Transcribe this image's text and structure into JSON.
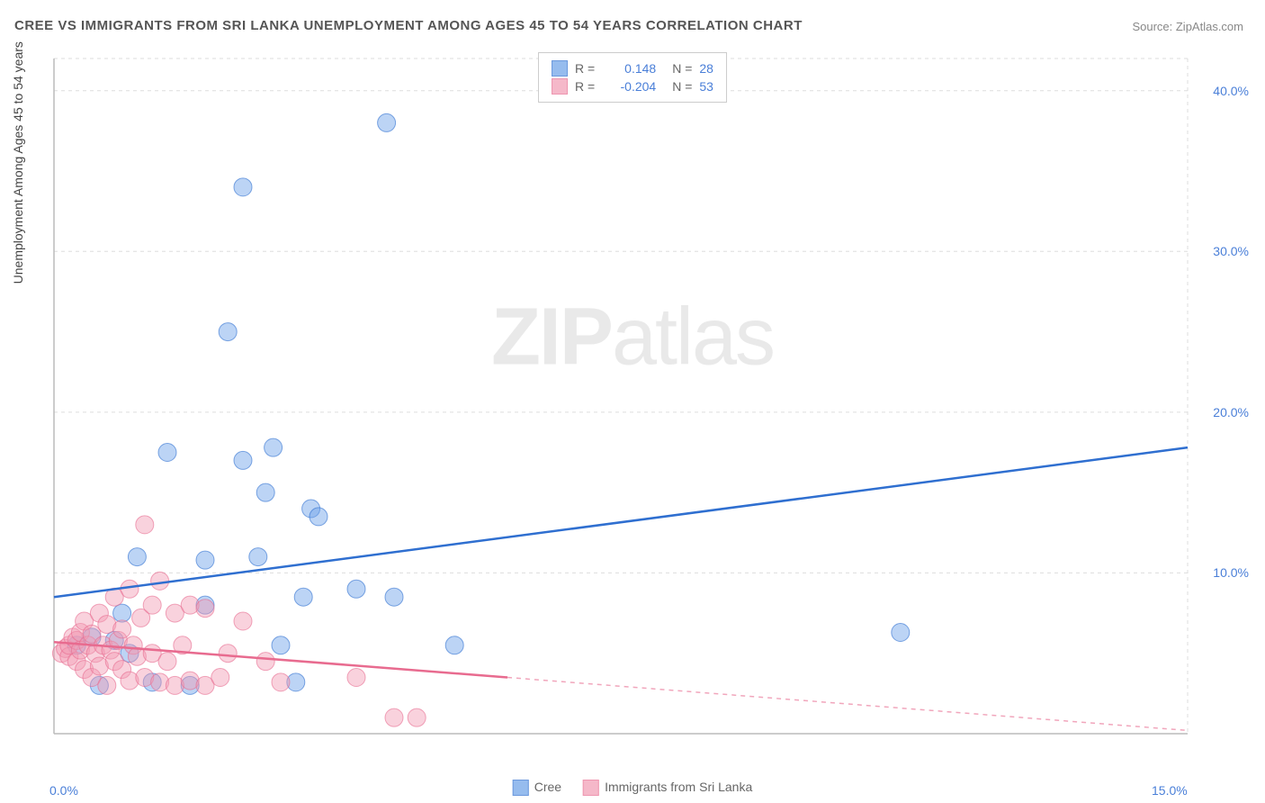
{
  "title": "CREE VS IMMIGRANTS FROM SRI LANKA UNEMPLOYMENT AMONG AGES 45 TO 54 YEARS CORRELATION CHART",
  "source_label": "Source: ",
  "source_name": "ZipAtlas.com",
  "y_axis_label": "Unemployment Among Ages 45 to 54 years",
  "watermark_bold": "ZIP",
  "watermark_light": "atlas",
  "chart": {
    "type": "scatter",
    "xlim": [
      0,
      15
    ],
    "ylim": [
      0,
      42
    ],
    "x_ticks": [
      {
        "v": 0,
        "label": "0.0%"
      },
      {
        "v": 15,
        "label": "15.0%"
      }
    ],
    "y_ticks": [
      {
        "v": 10,
        "label": "10.0%"
      },
      {
        "v": 20,
        "label": "20.0%"
      },
      {
        "v": 30,
        "label": "30.0%"
      },
      {
        "v": 40,
        "label": "40.0%"
      }
    ],
    "grid_color": "#dddddd",
    "axis_color": "#bbbbbb",
    "background": "#ffffff",
    "marker_radius": 10,
    "marker_opacity": 0.45,
    "line_width": 2.5,
    "series": [
      {
        "name": "Cree",
        "color": "#6aa0e8",
        "line_color": "#2f6fd0",
        "R": "0.148",
        "N": "28",
        "trend": {
          "x1": 0,
          "y1": 8.5,
          "x2": 15,
          "y2": 17.8,
          "dash_after_x": 15
        },
        "points": [
          [
            0.3,
            5.5
          ],
          [
            0.5,
            6.0
          ],
          [
            0.6,
            3.0
          ],
          [
            0.8,
            5.8
          ],
          [
            0.9,
            7.5
          ],
          [
            1.0,
            5.0
          ],
          [
            1.1,
            11.0
          ],
          [
            1.3,
            3.2
          ],
          [
            1.5,
            17.5
          ],
          [
            1.8,
            3.0
          ],
          [
            2.0,
            10.8
          ],
          [
            2.0,
            8.0
          ],
          [
            2.3,
            25.0
          ],
          [
            2.5,
            17.0
          ],
          [
            2.5,
            34.0
          ],
          [
            2.7,
            11.0
          ],
          [
            2.8,
            15.0
          ],
          [
            2.9,
            17.8
          ],
          [
            3.0,
            5.5
          ],
          [
            3.2,
            3.2
          ],
          [
            3.3,
            8.5
          ],
          [
            3.4,
            14.0
          ],
          [
            3.5,
            13.5
          ],
          [
            4.0,
            9.0
          ],
          [
            4.4,
            38.0
          ],
          [
            4.5,
            8.5
          ],
          [
            5.3,
            5.5
          ],
          [
            11.2,
            6.3
          ]
        ]
      },
      {
        "name": "Immigrants from Sri Lanka",
        "color": "#f29bb3",
        "line_color": "#e86b8f",
        "R": "-0.204",
        "N": "53",
        "trend": {
          "x1": 0,
          "y1": 5.7,
          "x2": 15,
          "y2": 0.2,
          "dash_after_x": 6
        },
        "points": [
          [
            0.1,
            5.0
          ],
          [
            0.15,
            5.3
          ],
          [
            0.2,
            4.8
          ],
          [
            0.2,
            5.5
          ],
          [
            0.25,
            6.0
          ],
          [
            0.3,
            4.5
          ],
          [
            0.3,
            5.8
          ],
          [
            0.35,
            5.2
          ],
          [
            0.35,
            6.3
          ],
          [
            0.4,
            4.0
          ],
          [
            0.4,
            7.0
          ],
          [
            0.45,
            5.5
          ],
          [
            0.5,
            3.5
          ],
          [
            0.5,
            6.2
          ],
          [
            0.55,
            5.0
          ],
          [
            0.6,
            4.2
          ],
          [
            0.6,
            7.5
          ],
          [
            0.65,
            5.5
          ],
          [
            0.7,
            3.0
          ],
          [
            0.7,
            6.8
          ],
          [
            0.75,
            5.2
          ],
          [
            0.8,
            4.5
          ],
          [
            0.8,
            8.5
          ],
          [
            0.85,
            5.8
          ],
          [
            0.9,
            4.0
          ],
          [
            0.9,
            6.5
          ],
          [
            1.0,
            3.3
          ],
          [
            1.0,
            9.0
          ],
          [
            1.05,
            5.5
          ],
          [
            1.1,
            4.8
          ],
          [
            1.15,
            7.2
          ],
          [
            1.2,
            3.5
          ],
          [
            1.2,
            13.0
          ],
          [
            1.3,
            5.0
          ],
          [
            1.3,
            8.0
          ],
          [
            1.4,
            3.2
          ],
          [
            1.4,
            9.5
          ],
          [
            1.5,
            4.5
          ],
          [
            1.6,
            3.0
          ],
          [
            1.6,
            7.5
          ],
          [
            1.7,
            5.5
          ],
          [
            1.8,
            3.3
          ],
          [
            1.8,
            8.0
          ],
          [
            2.0,
            3.0
          ],
          [
            2.0,
            7.8
          ],
          [
            2.2,
            3.5
          ],
          [
            2.3,
            5.0
          ],
          [
            2.5,
            7.0
          ],
          [
            2.8,
            4.5
          ],
          [
            3.0,
            3.2
          ],
          [
            4.0,
            3.5
          ],
          [
            4.5,
            1.0
          ],
          [
            4.8,
            1.0
          ]
        ]
      }
    ],
    "legend_top_labels": {
      "R": "R =",
      "N": "N ="
    },
    "legend_bottom": [
      "Cree",
      "Immigrants from Sri Lanka"
    ]
  }
}
